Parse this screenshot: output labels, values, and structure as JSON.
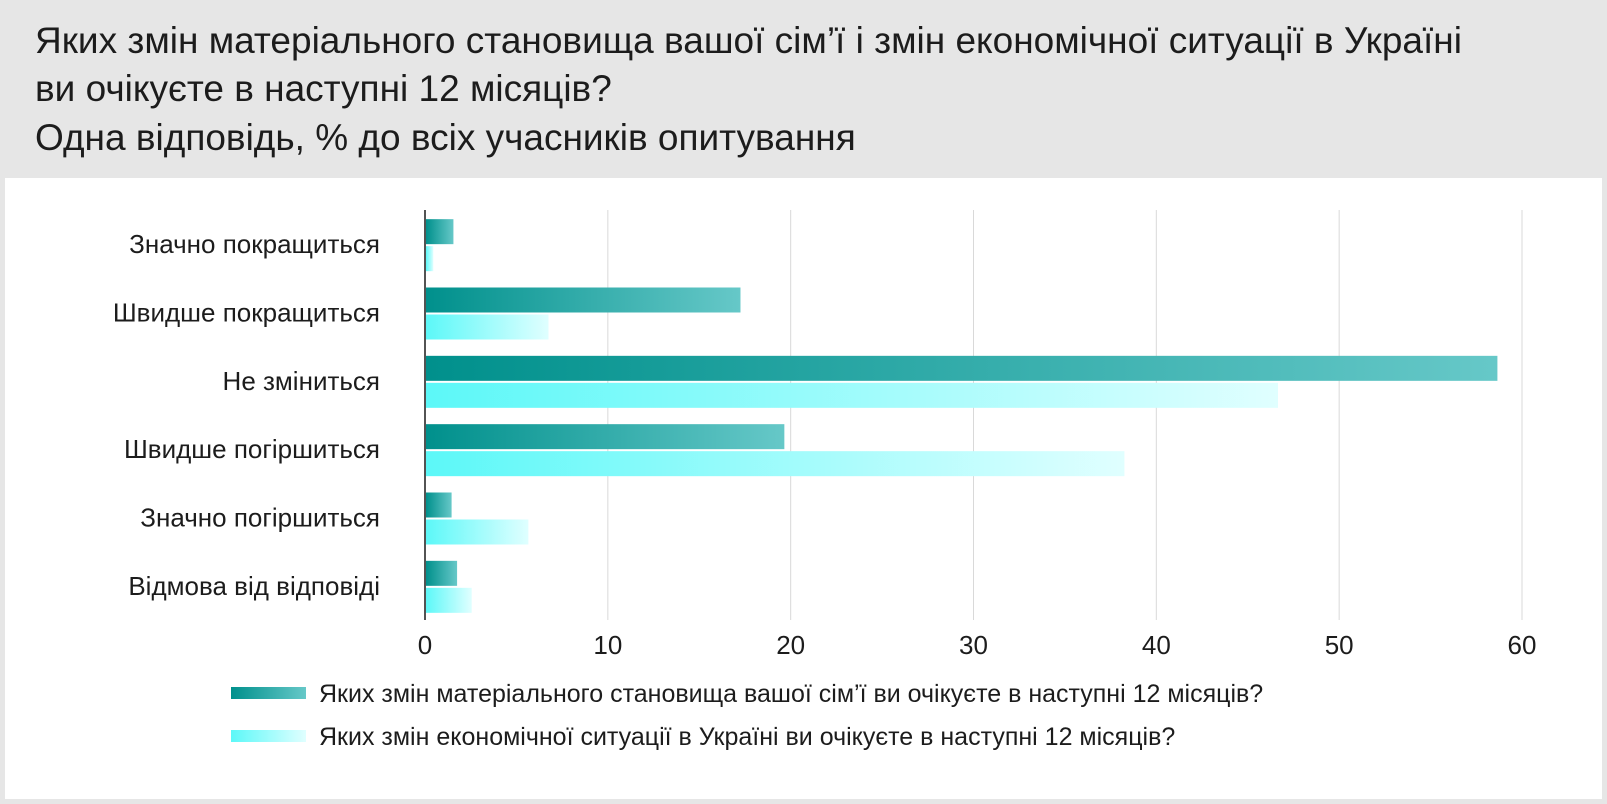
{
  "title": {
    "line1": "Яких змін матеріального становища вашої сім’ї і змін економічної ситуації в Україні",
    "line2": "ви очікуєте в наступні 12 місяців?",
    "line3": "Одна відповідь, % до всіх учасників опитування"
  },
  "colors": {
    "series1_start": "#00908c",
    "series1_end": "#66c8c8",
    "series2_start": "#5cf8f8",
    "series2_end": "#e0ffff",
    "gridline": "#d9d9d9",
    "axis": "#1a1a1a",
    "header_bg": "#e6e6e6"
  },
  "chart_data": {
    "type": "bar",
    "orientation": "horizontal",
    "categories": [
      "Значно покращиться",
      "Швидше покращиться",
      "Не зміниться",
      "Швидше погіршиться",
      "Значно погіршиться",
      "Відмова від відповіді"
    ],
    "series": [
      {
        "name": "Яких змін матеріального становища вашої сім’ї ви очікуєте в наступні 12 місяців?",
        "values": [
          1.5,
          17.2,
          58.6,
          19.6,
          1.4,
          1.7
        ]
      },
      {
        "name": "Яких змін економічної ситуації в Україні ви очікуєте в наступні 12 місяців?",
        "values": [
          0.4,
          6.7,
          46.6,
          38.2,
          5.6,
          2.5
        ]
      }
    ],
    "xlim": [
      0,
      60
    ],
    "xticks": [
      "0",
      "10",
      "20",
      "30",
      "40",
      "50",
      "60"
    ],
    "grid": true,
    "legend_position": "bottom"
  }
}
